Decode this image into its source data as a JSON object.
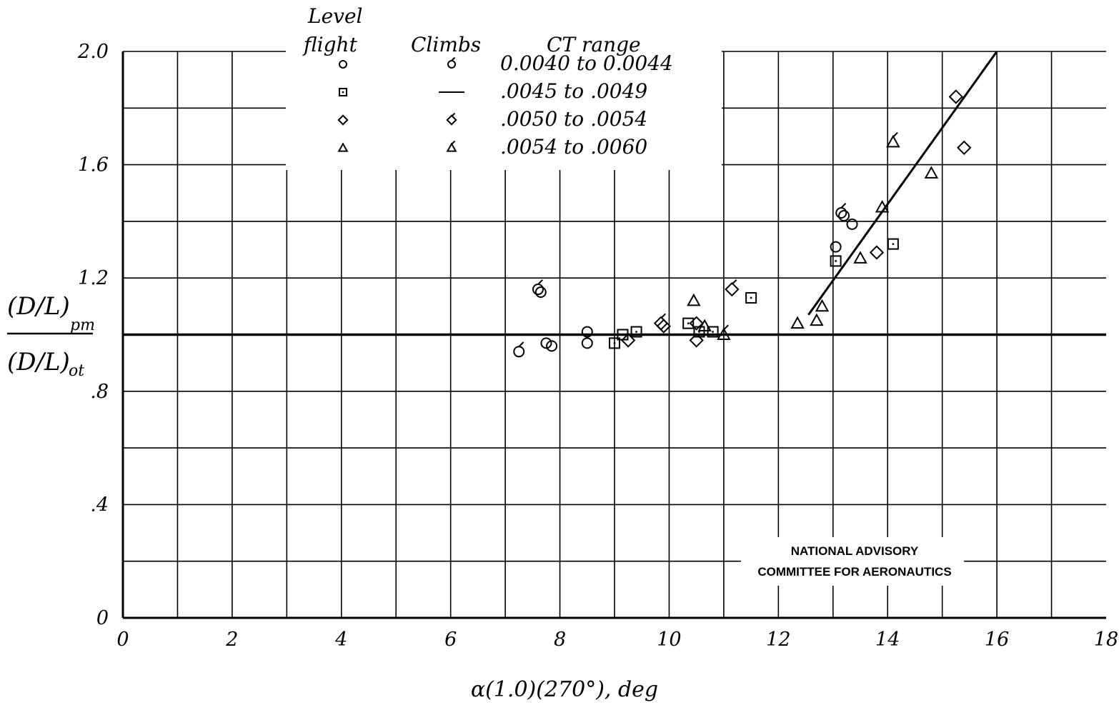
{
  "chart_data": {
    "type": "scatter",
    "xlabel": "α(1.0)(270°), deg",
    "ylabel": "(D/L)pm / (D/L)ot",
    "xlim": [
      0,
      18
    ],
    "ylim": [
      0,
      2.0
    ],
    "grid": true,
    "x_ticks": [
      "0",
      "2",
      "4",
      "6",
      "8",
      "10",
      "12",
      "14",
      "16",
      "18"
    ],
    "y_ticks": [
      "0",
      ".4",
      ".8",
      "1.2",
      "1.6",
      "2.0"
    ],
    "legend": {
      "position": "top-center",
      "headers": [
        "Level flight",
        "Climbs",
        "CT range"
      ],
      "rows": [
        {
          "level_symbol": "circle",
          "climb_symbol": "circle-flagged",
          "range": "0.0040 to 0.0044"
        },
        {
          "level_symbol": "square",
          "climb_symbol": "dash",
          "range": ".0045 to .0049"
        },
        {
          "level_symbol": "diamond",
          "climb_symbol": "diamond-flagged",
          "range": ".0050 to .0054"
        },
        {
          "level_symbol": "triangle",
          "climb_symbol": "triangle-flagged",
          "range": ".0054 to .0060"
        }
      ]
    },
    "reference_line": {
      "y": 1.0
    },
    "fit_line": {
      "x": [
        12.55,
        16.0
      ],
      "y": [
        1.07,
        2.0
      ]
    },
    "series": [
      {
        "name": "0.0040 to 0.0044",
        "marker": "circle",
        "points": [
          {
            "x": 7.6,
            "y": 1.16,
            "climb": true
          },
          {
            "x": 7.65,
            "y": 1.15,
            "climb": false
          },
          {
            "x": 7.25,
            "y": 0.94,
            "climb": true
          },
          {
            "x": 7.75,
            "y": 0.97,
            "climb": false
          },
          {
            "x": 7.85,
            "y": 0.96,
            "climb": false
          },
          {
            "x": 8.5,
            "y": 1.01,
            "climb": false
          },
          {
            "x": 8.5,
            "y": 0.97,
            "climb": false
          },
          {
            "x": 13.05,
            "y": 1.31,
            "climb": false
          },
          {
            "x": 13.15,
            "y": 1.43,
            "climb": true
          },
          {
            "x": 13.2,
            "y": 1.42,
            "climb": false
          },
          {
            "x": 13.35,
            "y": 1.39,
            "climb": false
          }
        ]
      },
      {
        "name": ".0045 to .0049",
        "marker": "square",
        "points": [
          {
            "x": 9.0,
            "y": 0.97,
            "climb": false
          },
          {
            "x": 9.15,
            "y": 1.0,
            "climb": false
          },
          {
            "x": 9.4,
            "y": 1.01,
            "climb": false
          },
          {
            "x": 10.35,
            "y": 1.04,
            "climb": false
          },
          {
            "x": 10.55,
            "y": 1.01,
            "climb": false
          },
          {
            "x": 10.8,
            "y": 1.01,
            "climb": false
          },
          {
            "x": 11.5,
            "y": 1.13,
            "climb": false
          },
          {
            "x": 13.05,
            "y": 1.26,
            "climb": false
          },
          {
            "x": 14.1,
            "y": 1.32,
            "climb": false
          }
        ]
      },
      {
        "name": ".0050 to .0054",
        "marker": "diamond",
        "points": [
          {
            "x": 9.25,
            "y": 0.98,
            "climb": false
          },
          {
            "x": 9.85,
            "y": 1.04,
            "climb": true
          },
          {
            "x": 9.9,
            "y": 1.03,
            "climb": false
          },
          {
            "x": 10.5,
            "y": 1.04,
            "climb": false
          },
          {
            "x": 10.5,
            "y": 0.98,
            "climb": false
          },
          {
            "x": 11.15,
            "y": 1.16,
            "climb": true
          },
          {
            "x": 13.8,
            "y": 1.29,
            "climb": false
          },
          {
            "x": 15.25,
            "y": 1.84,
            "climb": false
          },
          {
            "x": 15.4,
            "y": 1.66,
            "climb": false
          }
        ]
      },
      {
        "name": ".0054 to .0060",
        "marker": "triangle",
        "points": [
          {
            "x": 10.45,
            "y": 1.12,
            "climb": false
          },
          {
            "x": 10.65,
            "y": 1.03,
            "climb": false
          },
          {
            "x": 11.0,
            "y": 1.0,
            "climb": true
          },
          {
            "x": 12.35,
            "y": 1.04,
            "climb": false
          },
          {
            "x": 12.7,
            "y": 1.05,
            "climb": false
          },
          {
            "x": 12.8,
            "y": 1.1,
            "climb": false
          },
          {
            "x": 13.5,
            "y": 1.27,
            "climb": false
          },
          {
            "x": 13.9,
            "y": 1.45,
            "climb": false
          },
          {
            "x": 14.1,
            "y": 1.68,
            "climb": true
          },
          {
            "x": 14.8,
            "y": 1.57,
            "climb": false
          }
        ]
      }
    ],
    "annotations": [
      "NATIONAL ADVISORY",
      "COMMITTEE FOR AERONAUTICS"
    ]
  }
}
